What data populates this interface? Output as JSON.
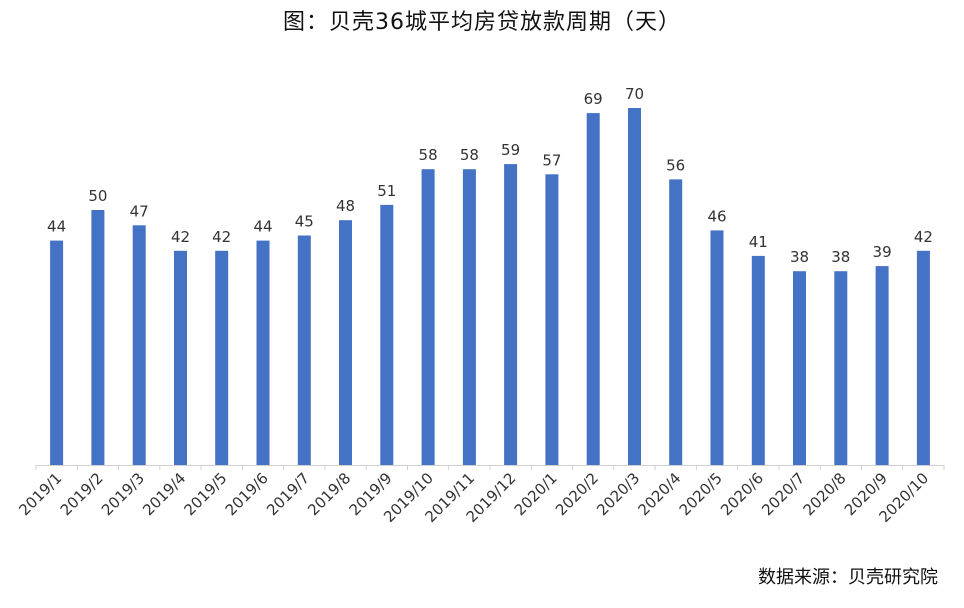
{
  "chart_data": {
    "type": "bar",
    "title": "图：贝壳36城平均房贷放款周期（天）",
    "source": "数据来源：贝壳研究院",
    "categories": [
      "2019/1",
      "2019/2",
      "2019/3",
      "2019/4",
      "2019/5",
      "2019/6",
      "2019/7",
      "2019/8",
      "2019/9",
      "2019/10",
      "2019/11",
      "2019/12",
      "2020/1",
      "2020/2",
      "2020/3",
      "2020/4",
      "2020/5",
      "2020/6",
      "2020/7",
      "2020/8",
      "2020/9",
      "2020/10"
    ],
    "values": [
      44,
      50,
      47,
      42,
      42,
      44,
      45,
      48,
      51,
      58,
      58,
      59,
      57,
      69,
      70,
      56,
      46,
      41,
      38,
      38,
      39,
      42
    ],
    "ylim": [
      0,
      70
    ],
    "grid": false,
    "legend": "none",
    "bar_color": "#4472C4"
  }
}
